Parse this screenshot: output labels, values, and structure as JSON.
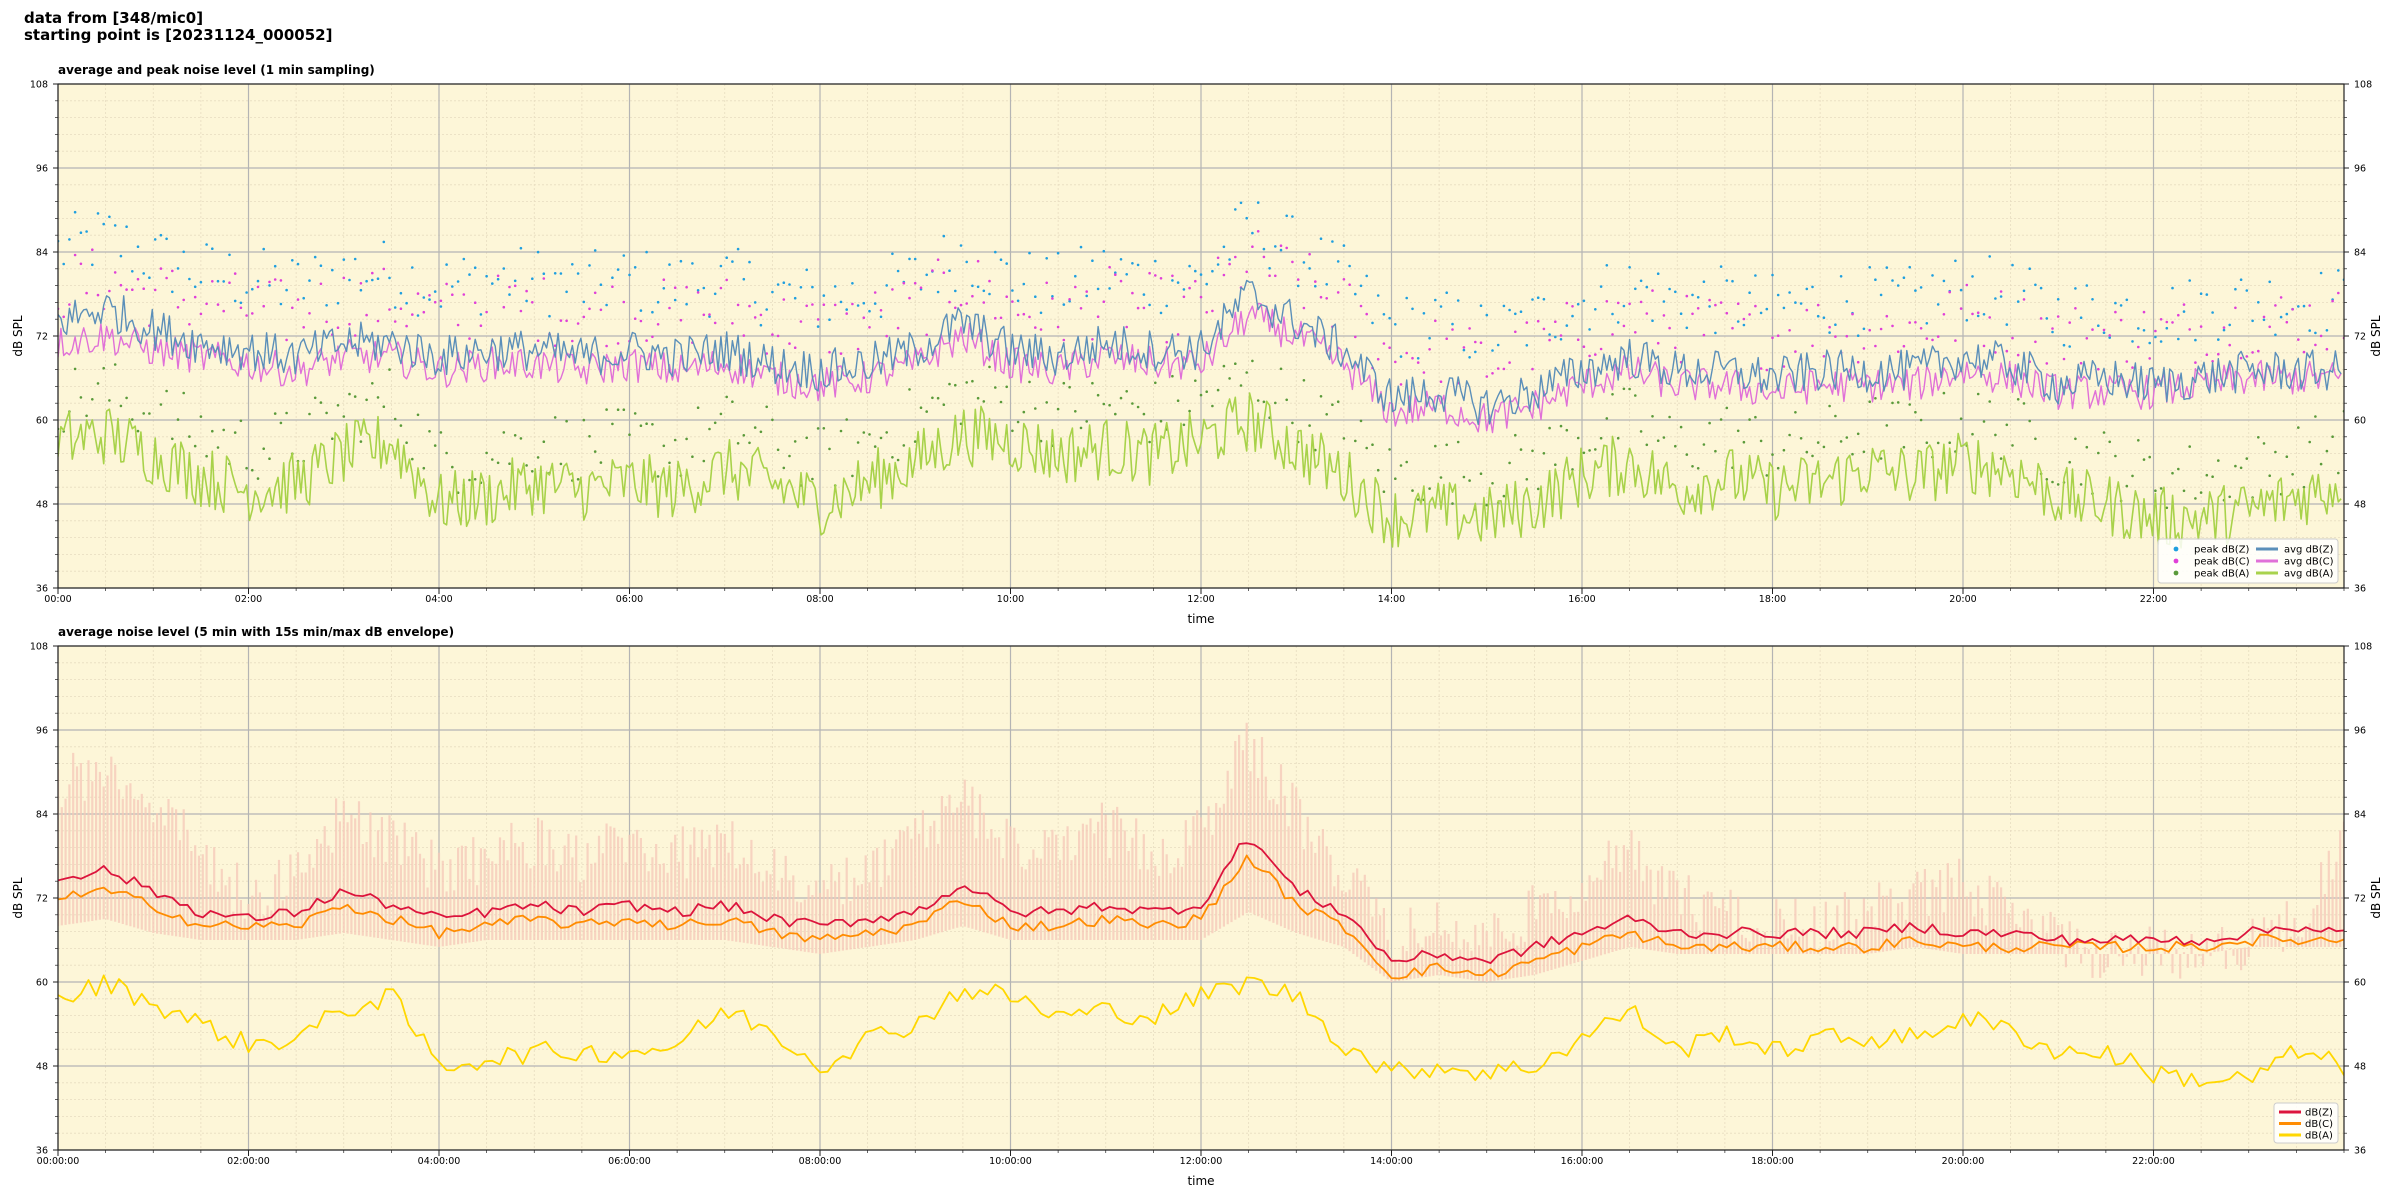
{
  "header": {
    "line1": "data from [348/mic0]",
    "line2": "starting point is [20231124_000052]"
  },
  "colors": {
    "background": "#fdf6d8",
    "major_grid": "#b4b4b4",
    "minor_grid": "#e7dcc0",
    "peak_z": "#1f9fdf",
    "peak_c": "#e040d8",
    "peak_a": "#5a9a3a",
    "avg_z": "#5b8fb9",
    "avg_c": "#e070d8",
    "avg_a": "#a8d24a",
    "env": "#f6c8b8",
    "dbz": "#dc143c",
    "dbc": "#ff8c00",
    "dba": "#ffd700"
  },
  "chart_data": [
    {
      "type": "line",
      "title": "average and peak noise level (1 min sampling)",
      "xlabel": "time",
      "ylabel": "dB SPL",
      "ylim": [
        36,
        108
      ],
      "xlim_hours": [
        0,
        24
      ],
      "grid": true,
      "legend_position": "bottom-right",
      "yticks": [
        "36",
        "48",
        "60",
        "72",
        "84",
        "96",
        "108"
      ],
      "xticks": [
        "00:00",
        "02:00",
        "04:00",
        "06:00",
        "08:00",
        "10:00",
        "12:00",
        "14:00",
        "16:00",
        "18:00",
        "20:00",
        "22:00"
      ],
      "legend": [
        "peak dB(Z)",
        "peak dB(C)",
        "peak dB(A)",
        "avg dB(Z)",
        "avg dB(C)",
        "avg dB(A)"
      ],
      "series": [
        {
          "name": "avg dB(Z)",
          "hours": [
            0,
            0.5,
            1,
            1.5,
            2,
            2.5,
            3,
            3.5,
            4,
            4.5,
            5,
            5.5,
            6,
            6.5,
            7,
            7.5,
            8,
            8.5,
            9,
            9.5,
            10,
            10.5,
            11,
            11.5,
            12,
            12.5,
            13,
            13.5,
            14,
            14.5,
            15,
            15.5,
            16,
            16.5,
            17,
            17.5,
            18,
            18.5,
            19,
            19.5,
            20,
            20.5,
            21,
            21.5,
            22,
            22.5,
            23,
            23.5,
            24
          ],
          "values": [
            74,
            76,
            73,
            71,
            70,
            69,
            71,
            71,
            69,
            70,
            70,
            69,
            70,
            69,
            70,
            68,
            67,
            68,
            70,
            74,
            70,
            69,
            71,
            70,
            70,
            78,
            74,
            70,
            63,
            64,
            62,
            64,
            67,
            69,
            67,
            67,
            66,
            67,
            67,
            67,
            69,
            68,
            65,
            66,
            65,
            66,
            67,
            67,
            67
          ]
        },
        {
          "name": "avg dB(C)",
          "hours": [
            0,
            0.5,
            1,
            1.5,
            2,
            2.5,
            3,
            3.5,
            4,
            4.5,
            5,
            5.5,
            6,
            6.5,
            7,
            7.5,
            8,
            8.5,
            9,
            9.5,
            10,
            10.5,
            11,
            11.5,
            12,
            12.5,
            13,
            13.5,
            14,
            14.5,
            15,
            15.5,
            16,
            16.5,
            17,
            17.5,
            18,
            18.5,
            19,
            19.5,
            20,
            20.5,
            21,
            21.5,
            22,
            22.5,
            23,
            23.5,
            24
          ],
          "values": [
            71,
            72,
            70,
            69,
            68,
            67,
            69,
            69,
            67,
            68,
            68,
            67,
            68,
            67,
            68,
            66,
            65,
            66,
            68,
            72,
            68,
            67,
            69,
            68,
            68,
            75,
            72,
            68,
            61,
            62,
            60,
            62,
            65,
            67,
            65,
            65,
            64,
            65,
            65,
            65,
            67,
            66,
            64,
            64,
            64,
            65,
            66,
            66,
            66
          ]
        },
        {
          "name": "avg dB(A)",
          "hours": [
            0,
            0.5,
            1,
            1.5,
            2,
            2.5,
            3,
            3.5,
            4,
            4.5,
            5,
            5.5,
            6,
            6.5,
            7,
            7.5,
            8,
            8.5,
            9,
            9.5,
            10,
            10.5,
            11,
            11.5,
            12,
            12.5,
            13,
            13.5,
            14,
            14.5,
            15,
            15.5,
            16,
            16.5,
            17,
            17.5,
            18,
            18.5,
            19,
            19.5,
            20,
            20.5,
            21,
            21.5,
            22,
            22.5,
            23,
            23.5,
            24
          ],
          "values": [
            57,
            58,
            55,
            52,
            50,
            51,
            55,
            57,
            48,
            49,
            51,
            50,
            51,
            50,
            53,
            51,
            48,
            51,
            54,
            58,
            57,
            55,
            56,
            55,
            57,
            60,
            56,
            52,
            46,
            47,
            46,
            48,
            52,
            54,
            50,
            52,
            50,
            51,
            53,
            52,
            54,
            53,
            49,
            48,
            46,
            46,
            47,
            49,
            51
          ]
        }
      ]
    },
    {
      "type": "line",
      "title": "average noise level (5 min with 15s min/max dB envelope)",
      "xlabel": "time",
      "ylabel": "dB SPL",
      "ylim": [
        36,
        108
      ],
      "xlim_hours": [
        0,
        24
      ],
      "grid": true,
      "legend_position": "bottom-right",
      "yticks": [
        "36",
        "48",
        "60",
        "72",
        "84",
        "96",
        "108"
      ],
      "xticks": [
        "00:00:00",
        "02:00:00",
        "04:00:00",
        "06:00:00",
        "08:00:00",
        "10:00:00",
        "12:00:00",
        "14:00:00",
        "16:00:00",
        "18:00:00",
        "20:00:00",
        "22:00:00"
      ],
      "legend": [
        "dB(Z)",
        "dB(C)",
        "dB(A)"
      ],
      "series": [
        {
          "name": "dB(Z)",
          "hours": [
            0,
            0.5,
            1,
            1.5,
            2,
            2.5,
            3,
            3.5,
            4,
            4.5,
            5,
            5.5,
            6,
            6.5,
            7,
            7.5,
            8,
            8.5,
            9,
            9.5,
            10,
            10.5,
            11,
            11.5,
            12,
            12.5,
            13,
            13.5,
            14,
            14.5,
            15,
            15.5,
            16,
            16.5,
            17,
            17.5,
            18,
            18.5,
            19,
            19.5,
            20,
            20.5,
            21,
            21.5,
            22,
            22.5,
            23,
            23.5,
            24
          ],
          "values": [
            75,
            76,
            73,
            70,
            69,
            70,
            73,
            71,
            69,
            70,
            71,
            70,
            71,
            70,
            71,
            69,
            68,
            69,
            70,
            74,
            70,
            70,
            71,
            70,
            71,
            81,
            73,
            70,
            63,
            64,
            63,
            65,
            67,
            69,
            67,
            67,
            67,
            67,
            67,
            68,
            67,
            67,
            66,
            66,
            66,
            66,
            67,
            68,
            67
          ]
        },
        {
          "name": "dB(C)",
          "hours": [
            0,
            0.5,
            1,
            1.5,
            2,
            2.5,
            3,
            3.5,
            4,
            4.5,
            5,
            5.5,
            6,
            6.5,
            7,
            7.5,
            8,
            8.5,
            9,
            9.5,
            10,
            10.5,
            11,
            11.5,
            12,
            12.5,
            13,
            13.5,
            14,
            14.5,
            15,
            15.5,
            16,
            16.5,
            17,
            17.5,
            18,
            18.5,
            19,
            19.5,
            20,
            20.5,
            21,
            21.5,
            22,
            22.5,
            23,
            23.5,
            24
          ],
          "values": [
            72,
            73,
            71,
            68,
            68,
            68,
            71,
            69,
            67,
            68,
            69,
            68,
            69,
            68,
            69,
            67,
            66,
            67,
            68,
            72,
            68,
            68,
            69,
            68,
            69,
            78,
            71,
            68,
            61,
            62,
            61,
            63,
            65,
            67,
            65,
            65,
            65,
            65,
            65,
            66,
            65,
            65,
            65,
            65,
            65,
            65,
            66,
            66,
            66
          ]
        },
        {
          "name": "dB(A)",
          "hours": [
            0,
            0.5,
            1,
            1.5,
            2,
            2.5,
            3,
            3.5,
            4,
            4.5,
            5,
            5.5,
            6,
            6.5,
            7,
            7.5,
            8,
            8.5,
            9,
            9.5,
            10,
            10.5,
            11,
            11.5,
            12,
            12.5,
            13,
            13.5,
            14,
            14.5,
            15,
            15.5,
            16,
            16.5,
            17,
            17.5,
            18,
            18.5,
            19,
            19.5,
            20,
            20.5,
            21,
            21.5,
            22,
            22.5,
            23,
            23.5,
            24
          ],
          "values": [
            57,
            60,
            57,
            54,
            51,
            52,
            56,
            58,
            48,
            49,
            50,
            50,
            50,
            51,
            56,
            53,
            48,
            52,
            54,
            59,
            58,
            55,
            56,
            55,
            58,
            60,
            58,
            51,
            47,
            48,
            47,
            48,
            52,
            56,
            50,
            53,
            50,
            52,
            52,
            52,
            55,
            53,
            50,
            50,
            47,
            46,
            46,
            50,
            48
          ]
        },
        {
          "name": "envelope max",
          "hours": [
            0,
            0.5,
            1,
            1.5,
            2,
            2.5,
            3,
            3.5,
            4,
            4.5,
            5,
            5.5,
            6,
            6.5,
            7,
            7.5,
            8,
            8.5,
            9,
            9.5,
            10,
            10.5,
            11,
            11.5,
            12,
            12.5,
            13,
            13.5,
            14,
            14.5,
            15,
            15.5,
            16,
            16.5,
            17,
            17.5,
            18,
            18.5,
            19,
            19.5,
            20,
            20.5,
            21,
            21.5,
            22,
            22.5,
            23,
            23.5,
            24
          ],
          "values": [
            92,
            95,
            90,
            82,
            76,
            80,
            88,
            84,
            80,
            82,
            84,
            82,
            84,
            82,
            84,
            80,
            76,
            80,
            84,
            90,
            84,
            82,
            86,
            82,
            86,
            98,
            88,
            80,
            70,
            72,
            70,
            74,
            78,
            82,
            76,
            74,
            72,
            72,
            74,
            76,
            78,
            74,
            70,
            68,
            68,
            68,
            70,
            72,
            84
          ]
        },
        {
          "name": "envelope min",
          "hours": [
            0,
            0.5,
            1,
            1.5,
            2,
            2.5,
            3,
            3.5,
            4,
            4.5,
            5,
            5.5,
            6,
            6.5,
            7,
            7.5,
            8,
            8.5,
            9,
            9.5,
            10,
            10.5,
            11,
            11.5,
            12,
            12.5,
            13,
            13.5,
            14,
            14.5,
            15,
            15.5,
            16,
            16.5,
            17,
            17.5,
            18,
            18.5,
            19,
            19.5,
            20,
            20.5,
            21,
            21.5,
            22,
            22.5,
            23,
            23.5,
            24
          ],
          "values": [
            68,
            69,
            67,
            66,
            66,
            66,
            67,
            66,
            65,
            66,
            66,
            66,
            66,
            66,
            66,
            65,
            64,
            65,
            66,
            68,
            66,
            66,
            66,
            66,
            66,
            70,
            67,
            65,
            60,
            61,
            60,
            61,
            63,
            65,
            64,
            64,
            64,
            64,
            64,
            65,
            64,
            64,
            64,
            64,
            64,
            64,
            65,
            65,
            65
          ]
        }
      ]
    }
  ]
}
